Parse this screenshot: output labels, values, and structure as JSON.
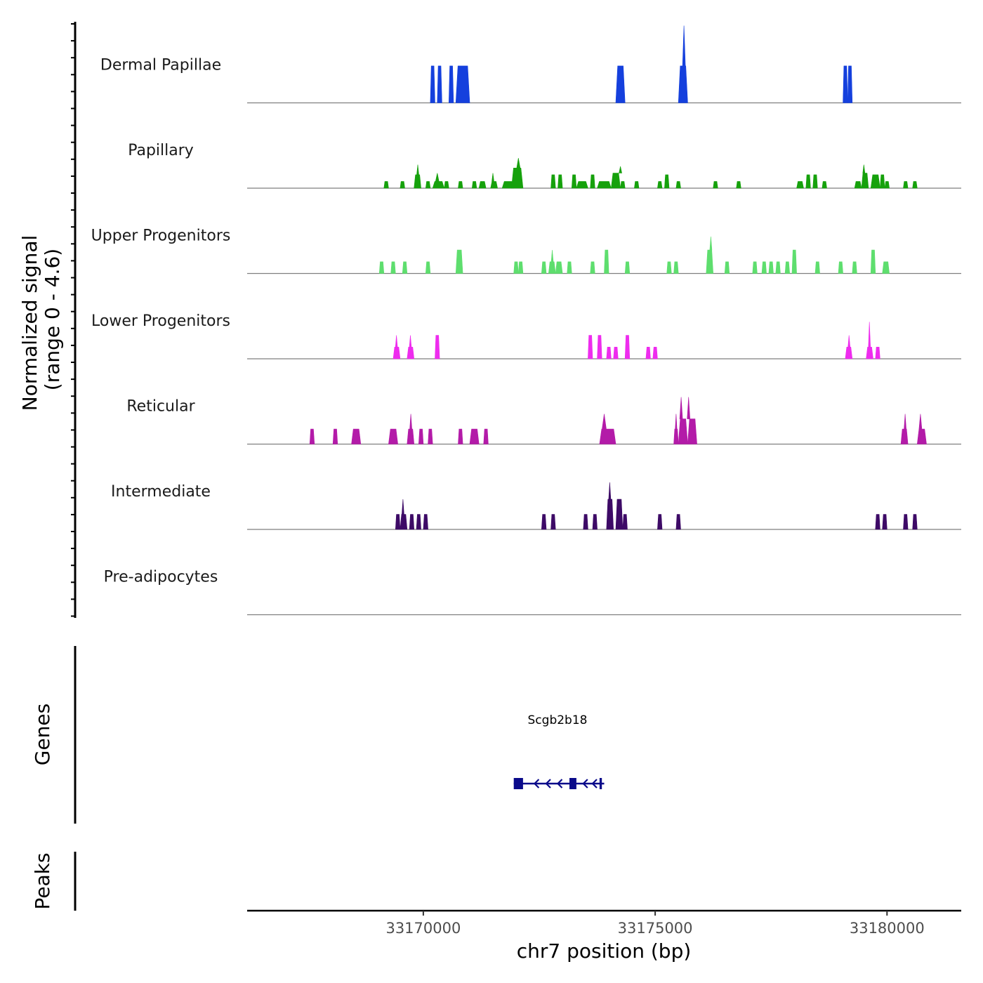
{
  "chart_data": {
    "type": "area",
    "title": "",
    "ylabel": "Normalized signal",
    "ylabel_range": "(range 0 - 4.6)",
    "ylim": [
      0,
      4.6
    ],
    "xlabel": "chr7 position (bp)",
    "xlim": [
      33166200,
      33181600
    ],
    "xticks": [
      33170000,
      33175000,
      33180000
    ],
    "tracks": [
      {
        "name": "Dermal Papillae",
        "color": "#1540dd",
        "peaks": [
          {
            "start": 33170150,
            "end": 33170250,
            "h": 2.2
          },
          {
            "start": 33170300,
            "end": 33170400,
            "h": 2.2
          },
          {
            "start": 33170550,
            "end": 33170650,
            "h": 2.2
          },
          {
            "start": 33170700,
            "end": 33171000,
            "h": 2.2
          },
          {
            "start": 33174150,
            "end": 33174350,
            "h": 2.2
          },
          {
            "start": 33175500,
            "end": 33175700,
            "h": 2.2,
            "spike": {
              "at": 33175620,
              "h": 4.6
            }
          },
          {
            "start": 33179050,
            "end": 33179150,
            "h": 2.2
          },
          {
            "start": 33179150,
            "end": 33179250,
            "h": 2.2
          }
        ]
      },
      {
        "name": "Papillary",
        "color": "#16a10c",
        "peaks": [
          {
            "start": 33169150,
            "end": 33169250,
            "h": 0.4
          },
          {
            "start": 33169500,
            "end": 33169600,
            "h": 0.4
          },
          {
            "start": 33169800,
            "end": 33169950,
            "h": 0.8,
            "spike": {
              "at": 33169880,
              "h": 1.4
            }
          },
          {
            "start": 33170050,
            "end": 33170150,
            "h": 0.4
          },
          {
            "start": 33170200,
            "end": 33170450,
            "h": 0.4,
            "spike": {
              "at": 33170300,
              "h": 0.9
            }
          },
          {
            "start": 33170450,
            "end": 33170550,
            "h": 0.4
          },
          {
            "start": 33170750,
            "end": 33170850,
            "h": 0.4
          },
          {
            "start": 33171050,
            "end": 33171150,
            "h": 0.4
          },
          {
            "start": 33171200,
            "end": 33171350,
            "h": 0.4
          },
          {
            "start": 33171450,
            "end": 33171600,
            "h": 0.4,
            "spike": {
              "at": 33171500,
              "h": 0.9
            }
          },
          {
            "start": 33171700,
            "end": 33171950,
            "h": 0.4
          },
          {
            "start": 33171900,
            "end": 33172150,
            "h": 1.2,
            "spike": {
              "at": 33172050,
              "h": 1.8
            }
          },
          {
            "start": 33172750,
            "end": 33172850,
            "h": 0.8
          },
          {
            "start": 33172900,
            "end": 33173000,
            "h": 0.8
          },
          {
            "start": 33173200,
            "end": 33173300,
            "h": 0.8
          },
          {
            "start": 33173300,
            "end": 33173550,
            "h": 0.4
          },
          {
            "start": 33173600,
            "end": 33173700,
            "h": 0.8
          },
          {
            "start": 33173750,
            "end": 33174050,
            "h": 0.4
          },
          {
            "start": 33174050,
            "end": 33174250,
            "h": 0.9,
            "spike": {
              "at": 33174250,
              "h": 1.3
            }
          },
          {
            "start": 33174250,
            "end": 33174350,
            "h": 0.4
          },
          {
            "start": 33174550,
            "end": 33174650,
            "h": 0.4
          },
          {
            "start": 33175050,
            "end": 33175150,
            "h": 0.4
          },
          {
            "start": 33175200,
            "end": 33175300,
            "h": 0.8
          },
          {
            "start": 33175450,
            "end": 33175550,
            "h": 0.4
          },
          {
            "start": 33176250,
            "end": 33176350,
            "h": 0.4
          },
          {
            "start": 33176750,
            "end": 33176850,
            "h": 0.4
          },
          {
            "start": 33178050,
            "end": 33178200,
            "h": 0.4
          },
          {
            "start": 33178250,
            "end": 33178350,
            "h": 0.8
          },
          {
            "start": 33178400,
            "end": 33178500,
            "h": 0.8
          },
          {
            "start": 33178600,
            "end": 33178700,
            "h": 0.4
          },
          {
            "start": 33179300,
            "end": 33179450,
            "h": 0.4
          },
          {
            "start": 33179450,
            "end": 33179600,
            "h": 0.9,
            "spike": {
              "at": 33179500,
              "h": 1.4
            }
          },
          {
            "start": 33179650,
            "end": 33179850,
            "h": 0.8
          },
          {
            "start": 33179850,
            "end": 33179950,
            "h": 0.8
          },
          {
            "start": 33179950,
            "end": 33180050,
            "h": 0.4
          },
          {
            "start": 33180350,
            "end": 33180450,
            "h": 0.4
          },
          {
            "start": 33180550,
            "end": 33180650,
            "h": 0.4
          }
        ]
      },
      {
        "name": "Upper Progenitors",
        "color": "#5ede6e",
        "peaks": [
          {
            "start": 33169050,
            "end": 33169150,
            "h": 0.7
          },
          {
            "start": 33169300,
            "end": 33169400,
            "h": 0.7
          },
          {
            "start": 33169550,
            "end": 33169650,
            "h": 0.7
          },
          {
            "start": 33170050,
            "end": 33170150,
            "h": 0.7
          },
          {
            "start": 33170700,
            "end": 33170850,
            "h": 1.4,
            "spike": {
              "at": 33170780,
              "h": 1.4
            }
          },
          {
            "start": 33171950,
            "end": 33172050,
            "h": 0.7
          },
          {
            "start": 33172050,
            "end": 33172150,
            "h": 0.7
          },
          {
            "start": 33172550,
            "end": 33172650,
            "h": 0.7
          },
          {
            "start": 33172700,
            "end": 33172850,
            "h": 0.7,
            "spike": {
              "at": 33172780,
              "h": 1.4
            }
          },
          {
            "start": 33172850,
            "end": 33173000,
            "h": 0.7
          },
          {
            "start": 33173100,
            "end": 33173200,
            "h": 0.7
          },
          {
            "start": 33173600,
            "end": 33173700,
            "h": 0.7
          },
          {
            "start": 33173900,
            "end": 33174000,
            "h": 1.4
          },
          {
            "start": 33174350,
            "end": 33174450,
            "h": 0.7
          },
          {
            "start": 33175250,
            "end": 33175350,
            "h": 0.7
          },
          {
            "start": 33175400,
            "end": 33175500,
            "h": 0.7
          },
          {
            "start": 33176100,
            "end": 33176250,
            "h": 1.4,
            "spike": {
              "at": 33176200,
              "h": 2.2
            }
          },
          {
            "start": 33176500,
            "end": 33176600,
            "h": 0.7
          },
          {
            "start": 33177100,
            "end": 33177200,
            "h": 0.7
          },
          {
            "start": 33177300,
            "end": 33177400,
            "h": 0.7
          },
          {
            "start": 33177450,
            "end": 33177550,
            "h": 0.7
          },
          {
            "start": 33177600,
            "end": 33177700,
            "h": 0.7
          },
          {
            "start": 33177800,
            "end": 33177900,
            "h": 0.7
          },
          {
            "start": 33177950,
            "end": 33178050,
            "h": 1.4
          },
          {
            "start": 33178450,
            "end": 33178550,
            "h": 0.7
          },
          {
            "start": 33178950,
            "end": 33179050,
            "h": 0.7
          },
          {
            "start": 33179250,
            "end": 33179350,
            "h": 0.7
          },
          {
            "start": 33179650,
            "end": 33179750,
            "h": 1.4
          },
          {
            "start": 33179900,
            "end": 33180050,
            "h": 0.7
          }
        ]
      },
      {
        "name": "Lower Progenitors",
        "color": "#ee2cee",
        "peaks": [
          {
            "start": 33169350,
            "end": 33169500,
            "h": 0.7,
            "spike": {
              "at": 33169420,
              "h": 1.4
            }
          },
          {
            "start": 33169650,
            "end": 33169800,
            "h": 0.7,
            "spike": {
              "at": 33169720,
              "h": 1.4
            }
          },
          {
            "start": 33170250,
            "end": 33170350,
            "h": 1.4
          },
          {
            "start": 33173550,
            "end": 33173650,
            "h": 1.4
          },
          {
            "start": 33173750,
            "end": 33173850,
            "h": 1.4
          },
          {
            "start": 33173950,
            "end": 33174050,
            "h": 0.7
          },
          {
            "start": 33174100,
            "end": 33174200,
            "h": 0.7
          },
          {
            "start": 33174350,
            "end": 33174450,
            "h": 1.4
          },
          {
            "start": 33174800,
            "end": 33174900,
            "h": 0.7
          },
          {
            "start": 33174950,
            "end": 33175050,
            "h": 0.7
          },
          {
            "start": 33179100,
            "end": 33179250,
            "h": 0.7,
            "spike": {
              "at": 33179180,
              "h": 1.4
            }
          },
          {
            "start": 33179550,
            "end": 33179700,
            "h": 0.7,
            "spike": {
              "at": 33179620,
              "h": 2.2
            }
          },
          {
            "start": 33179750,
            "end": 33179850,
            "h": 0.7
          }
        ]
      },
      {
        "name": "Reticular",
        "color": "#b31ba8",
        "peaks": [
          {
            "start": 33167550,
            "end": 33167650,
            "h": 0.9
          },
          {
            "start": 33168050,
            "end": 33168150,
            "h": 0.9
          },
          {
            "start": 33168450,
            "end": 33168650,
            "h": 0.9
          },
          {
            "start": 33169250,
            "end": 33169450,
            "h": 0.9
          },
          {
            "start": 33169650,
            "end": 33169800,
            "h": 0.9,
            "spike": {
              "at": 33169730,
              "h": 1.8
            }
          },
          {
            "start": 33169900,
            "end": 33170000,
            "h": 0.9
          },
          {
            "start": 33170100,
            "end": 33170200,
            "h": 0.9
          },
          {
            "start": 33170750,
            "end": 33170850,
            "h": 0.9
          },
          {
            "start": 33171000,
            "end": 33171200,
            "h": 0.9
          },
          {
            "start": 33171300,
            "end": 33171400,
            "h": 0.9
          },
          {
            "start": 33173800,
            "end": 33174150,
            "h": 0.9,
            "spike": {
              "at": 33173900,
              "h": 1.8
            }
          },
          {
            "start": 33175400,
            "end": 33175500,
            "h": 0.9,
            "spike": {
              "at": 33175450,
              "h": 1.8
            }
          },
          {
            "start": 33175500,
            "end": 33175700,
            "h": 1.5,
            "spike": {
              "at": 33175560,
              "h": 2.8
            }
          },
          {
            "start": 33175700,
            "end": 33175900,
            "h": 1.5,
            "spike": {
              "at": 33175720,
              "h": 2.8
            }
          },
          {
            "start": 33180300,
            "end": 33180450,
            "h": 0.9,
            "spike": {
              "at": 33180390,
              "h": 1.8
            }
          },
          {
            "start": 33180650,
            "end": 33180850,
            "h": 0.9,
            "spike": {
              "at": 33180720,
              "h": 1.8
            }
          }
        ]
      },
      {
        "name": "Intermediate",
        "color": "#3d0a66",
        "peaks": [
          {
            "start": 33169400,
            "end": 33169500,
            "h": 0.9
          },
          {
            "start": 33169500,
            "end": 33169650,
            "h": 0.9,
            "spike": {
              "at": 33169560,
              "h": 1.8
            }
          },
          {
            "start": 33169700,
            "end": 33169800,
            "h": 0.9
          },
          {
            "start": 33169850,
            "end": 33169950,
            "h": 0.9
          },
          {
            "start": 33170000,
            "end": 33170100,
            "h": 0.9
          },
          {
            "start": 33172550,
            "end": 33172650,
            "h": 0.9
          },
          {
            "start": 33172750,
            "end": 33172850,
            "h": 0.9
          },
          {
            "start": 33173450,
            "end": 33173550,
            "h": 0.9
          },
          {
            "start": 33173650,
            "end": 33173750,
            "h": 0.9
          },
          {
            "start": 33173950,
            "end": 33174100,
            "h": 1.8,
            "spike": {
              "at": 33174020,
              "h": 2.8
            }
          },
          {
            "start": 33174150,
            "end": 33174300,
            "h": 1.8
          },
          {
            "start": 33174300,
            "end": 33174400,
            "h": 0.9
          },
          {
            "start": 33175050,
            "end": 33175150,
            "h": 0.9
          },
          {
            "start": 33175450,
            "end": 33175550,
            "h": 0.9
          },
          {
            "start": 33179750,
            "end": 33179850,
            "h": 0.9
          },
          {
            "start": 33179900,
            "end": 33180000,
            "h": 0.9
          },
          {
            "start": 33180350,
            "end": 33180450,
            "h": 0.9
          },
          {
            "start": 33180550,
            "end": 33180650,
            "h": 0.9
          }
        ]
      },
      {
        "name": "Pre-adipocytes",
        "color": "#333333",
        "peaks": []
      }
    ],
    "genes_track": {
      "label": "Genes",
      "color": "#0a0a8a",
      "gene": {
        "name": "Scgb2b18",
        "strand": "-",
        "start": 33171950,
        "end": 33173900,
        "exons": [
          {
            "start": 33171950,
            "end": 33172150
          },
          {
            "start": 33173150,
            "end": 33173300
          },
          {
            "start": 33173800,
            "end": 33173850
          }
        ]
      }
    },
    "peaks_track": {
      "label": "Peaks",
      "regions": []
    }
  }
}
